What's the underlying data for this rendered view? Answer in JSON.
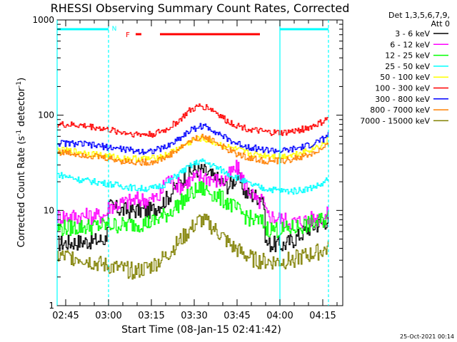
{
  "chart_data": {
    "type": "line",
    "title": "RHESSI Observing Summary Count Rates, Corrected",
    "xlabel": "Start Time (08-Jan-15 02:41:42)",
    "ylabel_prefix": "Corrected Count Rate (s",
    "ylabel_sup1": "-1",
    "ylabel_mid": " detector",
    "ylabel_sup2": "-1",
    "ylabel_suffix": ")",
    "y_scale": "log",
    "ylim": [
      1,
      1000
    ],
    "xlim_minutes": [
      -3,
      97
    ],
    "x_origin": "02:45",
    "y_ticks": [
      {
        "value": 1,
        "label": "1"
      },
      {
        "value": 10,
        "label": "10"
      },
      {
        "value": 100,
        "label": "100"
      },
      {
        "value": 1000,
        "label": "1000"
      }
    ],
    "x_ticks": [
      {
        "minute": 0,
        "label": "02:45"
      },
      {
        "minute": 15,
        "label": "03:00"
      },
      {
        "minute": 30,
        "label": "03:15"
      },
      {
        "minute": 45,
        "label": "03:30"
      },
      {
        "minute": 60,
        "label": "03:45"
      },
      {
        "minute": 75,
        "label": "04:00"
      },
      {
        "minute": 90,
        "label": "04:15"
      }
    ],
    "legend": {
      "position": "right",
      "header1": "Det 1,3,5,6,7,9,",
      "header2": "Att 0"
    },
    "series": [
      {
        "name": "3 - 6 keV",
        "color": "#000000",
        "points": [
          [
            -3,
            4.5
          ],
          [
            10,
            4.8
          ],
          [
            14,
            5
          ],
          [
            15,
            11
          ],
          [
            20,
            10
          ],
          [
            30,
            10
          ],
          [
            35,
            13
          ],
          [
            40,
            20
          ],
          [
            45,
            27
          ],
          [
            48,
            26
          ],
          [
            52,
            22
          ],
          [
            57,
            18
          ],
          [
            60,
            23
          ],
          [
            63,
            15
          ],
          [
            67,
            14
          ],
          [
            69,
            14
          ],
          [
            70,
            4.5
          ],
          [
            76,
            4.3
          ],
          [
            80,
            5
          ],
          [
            85,
            6.5
          ],
          [
            90,
            7.5
          ],
          [
            92,
            8
          ]
        ]
      },
      {
        "name": "6 - 12 keV",
        "color": "#ff00ff",
        "points": [
          [
            -3,
            8.7
          ],
          [
            10,
            8.7
          ],
          [
            14,
            9
          ],
          [
            15,
            11
          ],
          [
            20,
            12
          ],
          [
            25,
            13
          ],
          [
            30,
            13
          ],
          [
            33,
            14
          ],
          [
            35,
            22
          ],
          [
            40,
            18
          ],
          [
            45,
            22
          ],
          [
            48,
            23
          ],
          [
            52,
            21
          ],
          [
            55,
            20
          ],
          [
            58,
            25
          ],
          [
            60,
            28
          ],
          [
            63,
            18
          ],
          [
            67,
            12
          ],
          [
            69,
            13
          ],
          [
            70,
            9
          ],
          [
            76,
            8
          ],
          [
            80,
            7.5
          ],
          [
            85,
            8
          ],
          [
            90,
            8.5
          ],
          [
            92,
            9
          ]
        ]
      },
      {
        "name": "12 - 25 keV",
        "color": "#00ff00",
        "points": [
          [
            -3,
            6.5
          ],
          [
            10,
            6.8
          ],
          [
            15,
            7
          ],
          [
            20,
            7
          ],
          [
            30,
            7.5
          ],
          [
            35,
            9
          ],
          [
            40,
            12
          ],
          [
            44,
            15
          ],
          [
            47,
            17
          ],
          [
            50,
            16
          ],
          [
            53,
            14
          ],
          [
            57,
            12
          ],
          [
            60,
            10
          ],
          [
            65,
            8
          ],
          [
            69,
            7.5
          ],
          [
            70,
            6.5
          ],
          [
            76,
            6.2
          ],
          [
            82,
            6.8
          ],
          [
            88,
            7.5
          ],
          [
            92,
            8.5
          ]
        ]
      },
      {
        "name": "25 - 50 keV",
        "color": "#00ffff",
        "points": [
          [
            -3,
            24
          ],
          [
            5,
            21
          ],
          [
            10,
            20
          ],
          [
            15,
            19
          ],
          [
            20,
            18
          ],
          [
            25,
            17
          ],
          [
            30,
            17
          ],
          [
            35,
            19
          ],
          [
            40,
            25
          ],
          [
            45,
            31
          ],
          [
            47,
            33
          ],
          [
            50,
            31
          ],
          [
            53,
            28
          ],
          [
            56,
            25
          ],
          [
            60,
            22
          ],
          [
            64,
            19
          ],
          [
            69,
            17
          ],
          [
            70,
            17
          ],
          [
            76,
            16
          ],
          [
            80,
            16
          ],
          [
            85,
            17
          ],
          [
            90,
            19
          ],
          [
            92,
            22
          ]
        ]
      },
      {
        "name": "50 - 100 keV",
        "color": "#ffff00",
        "points": [
          [
            -3,
            43
          ],
          [
            5,
            41
          ],
          [
            10,
            39
          ],
          [
            15,
            37
          ],
          [
            20,
            35
          ],
          [
            30,
            35
          ],
          [
            35,
            38
          ],
          [
            40,
            46
          ],
          [
            45,
            55
          ],
          [
            47,
            57
          ],
          [
            50,
            54
          ],
          [
            55,
            48
          ],
          [
            60,
            43
          ],
          [
            65,
            39
          ],
          [
            70,
            38
          ],
          [
            76,
            37
          ],
          [
            80,
            39
          ],
          [
            85,
            43
          ],
          [
            90,
            50
          ],
          [
            92,
            55
          ]
        ]
      },
      {
        "name": "100 - 300 keV",
        "color": "#ff0000",
        "points": [
          [
            -3,
            80
          ],
          [
            5,
            78
          ],
          [
            10,
            75
          ],
          [
            15,
            70
          ],
          [
            20,
            66
          ],
          [
            25,
            63
          ],
          [
            30,
            63
          ],
          [
            35,
            70
          ],
          [
            40,
            90
          ],
          [
            43,
            110
          ],
          [
            47,
            125
          ],
          [
            50,
            120
          ],
          [
            53,
            105
          ],
          [
            56,
            88
          ],
          [
            60,
            78
          ],
          [
            65,
            70
          ],
          [
            70,
            66
          ],
          [
            76,
            65
          ],
          [
            80,
            68
          ],
          [
            85,
            74
          ],
          [
            90,
            85
          ],
          [
            92,
            95
          ]
        ]
      },
      {
        "name": "300 - 800 keV",
        "color": "#0000ff",
        "points": [
          [
            -3,
            51
          ],
          [
            5,
            50
          ],
          [
            10,
            48
          ],
          [
            15,
            46
          ],
          [
            20,
            44
          ],
          [
            25,
            42
          ],
          [
            30,
            42
          ],
          [
            35,
            46
          ],
          [
            40,
            58
          ],
          [
            43,
            68
          ],
          [
            47,
            77
          ],
          [
            50,
            74
          ],
          [
            53,
            66
          ],
          [
            56,
            57
          ],
          [
            60,
            50
          ],
          [
            65,
            46
          ],
          [
            70,
            43
          ],
          [
            76,
            42
          ],
          [
            80,
            44
          ],
          [
            85,
            48
          ],
          [
            90,
            56
          ],
          [
            92,
            63
          ]
        ]
      },
      {
        "name": "800 - 7000 keV",
        "color": "#ff8000",
        "points": [
          [
            -3,
            41
          ],
          [
            5,
            39
          ],
          [
            10,
            37
          ],
          [
            15,
            35
          ],
          [
            20,
            33
          ],
          [
            25,
            32
          ],
          [
            30,
            32
          ],
          [
            35,
            36
          ],
          [
            40,
            45
          ],
          [
            43,
            53
          ],
          [
            47,
            59
          ],
          [
            50,
            57
          ],
          [
            53,
            51
          ],
          [
            56,
            44
          ],
          [
            60,
            39
          ],
          [
            65,
            35
          ],
          [
            70,
            33
          ],
          [
            76,
            33
          ],
          [
            80,
            35
          ],
          [
            85,
            38
          ],
          [
            90,
            44
          ],
          [
            92,
            48
          ]
        ]
      },
      {
        "name": "7000 - 15000 keV",
        "color": "#808000",
        "points": [
          [
            -3,
            3.3
          ],
          [
            5,
            3.2
          ],
          [
            10,
            2.8
          ],
          [
            15,
            2.6
          ],
          [
            20,
            2.4
          ],
          [
            25,
            2.3
          ],
          [
            30,
            2.6
          ],
          [
            35,
            3.3
          ],
          [
            38,
            4.2
          ],
          [
            42,
            5.6
          ],
          [
            45,
            7
          ],
          [
            47,
            8
          ],
          [
            50,
            7.2
          ],
          [
            54,
            5.6
          ],
          [
            58,
            4.2
          ],
          [
            62,
            3.5
          ],
          [
            66,
            3
          ],
          [
            70,
            2.9
          ],
          [
            76,
            2.9
          ],
          [
            80,
            3.1
          ],
          [
            85,
            3.4
          ],
          [
            90,
            3.8
          ],
          [
            92,
            4
          ]
        ]
      }
    ],
    "attenuator_segments": [
      {
        "start": -3,
        "end": 15,
        "color": "#00ffff"
      },
      {
        "start": 75,
        "end": 92,
        "color": "#00ffff"
      }
    ],
    "vertical_markers": [
      {
        "minute": -3,
        "color": "#00ffff",
        "style": "solid"
      },
      {
        "minute": 15,
        "color": "#00ffff",
        "style": "dashed"
      },
      {
        "minute": 75,
        "color": "#00ffff",
        "style": "solid"
      },
      {
        "minute": 92,
        "color": "#00ffff",
        "style": "dashed"
      }
    ],
    "night_label": "N",
    "night_minute": 17,
    "flare_label": "F",
    "flare_segments": [
      {
        "start": 24.5,
        "end": 26.5
      },
      {
        "start": 33,
        "end": 68
      }
    ],
    "flare_color": "#ff0000"
  },
  "footer_timestamp": "25-Oct-2021 00:14"
}
